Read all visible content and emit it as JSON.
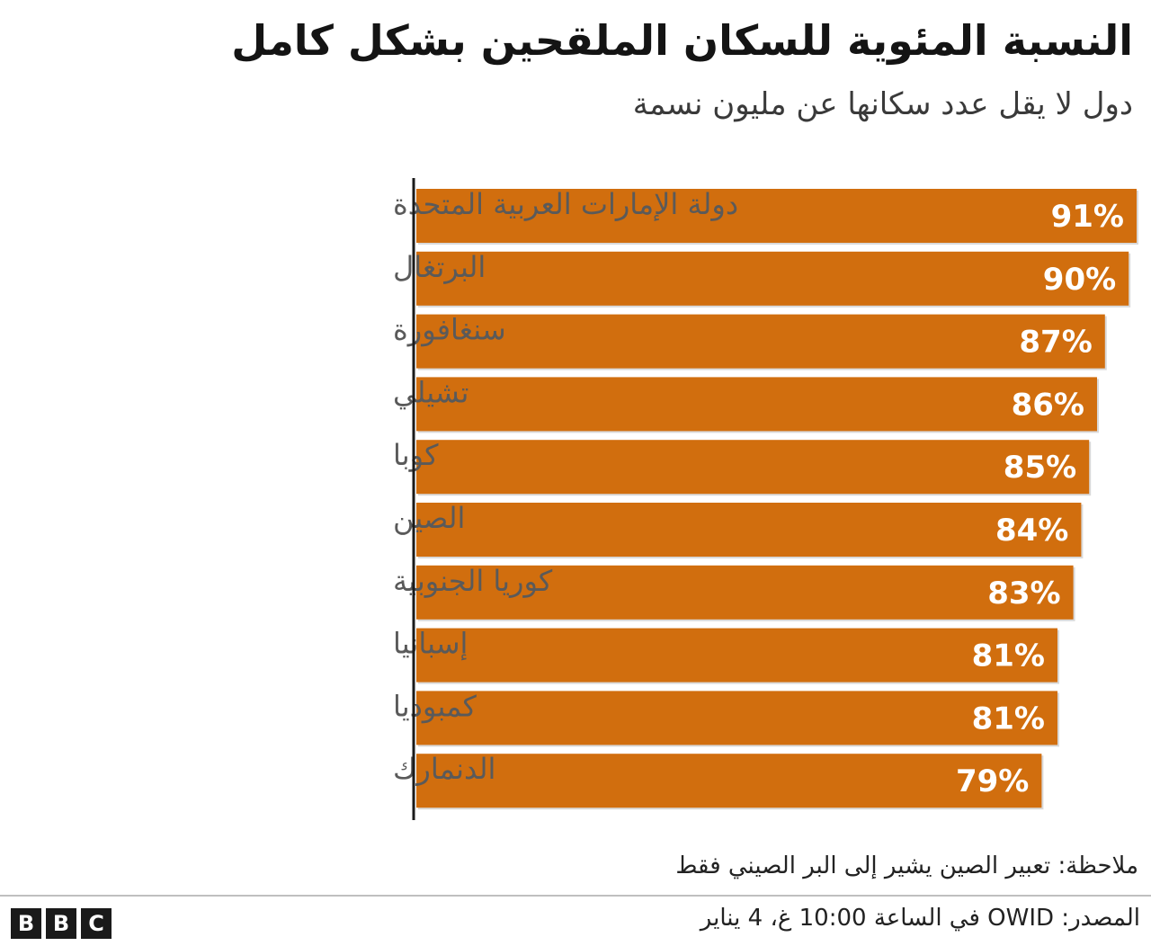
{
  "header": {
    "title": "النسبة المئوية للسكان الملقحين بشكل كامل",
    "subtitle": "دول لا يقل عدد سكانها عن مليون نسمة"
  },
  "chart_data": {
    "type": "bar",
    "orientation": "horizontal",
    "categories": [
      "دولة الإمارات العربية المتحدة",
      "البرتغال",
      "سنغافورة",
      "تشيلي",
      "كوبا",
      "الصين",
      "كوريا الجنوبية",
      "إسبانيا",
      "كمبوديا",
      "الدنمارك"
    ],
    "values": [
      91,
      90,
      87,
      86,
      85,
      84,
      83,
      81,
      81,
      79
    ],
    "value_labels": [
      "91%",
      "90%",
      "87%",
      "86%",
      "85%",
      "84%",
      "83%",
      "81%",
      "81%",
      "79%"
    ],
    "bar_color": "#d16e0e",
    "xlim": [
      0,
      91
    ],
    "grid": false
  },
  "footer": {
    "note": "ملاحظة: تعبير الصين يشير إلى البر الصيني فقط",
    "source": "المصدر: OWID في الساعة 10:00 غ، 4 يناير",
    "logo_letters": [
      "B",
      "B",
      "C"
    ]
  }
}
